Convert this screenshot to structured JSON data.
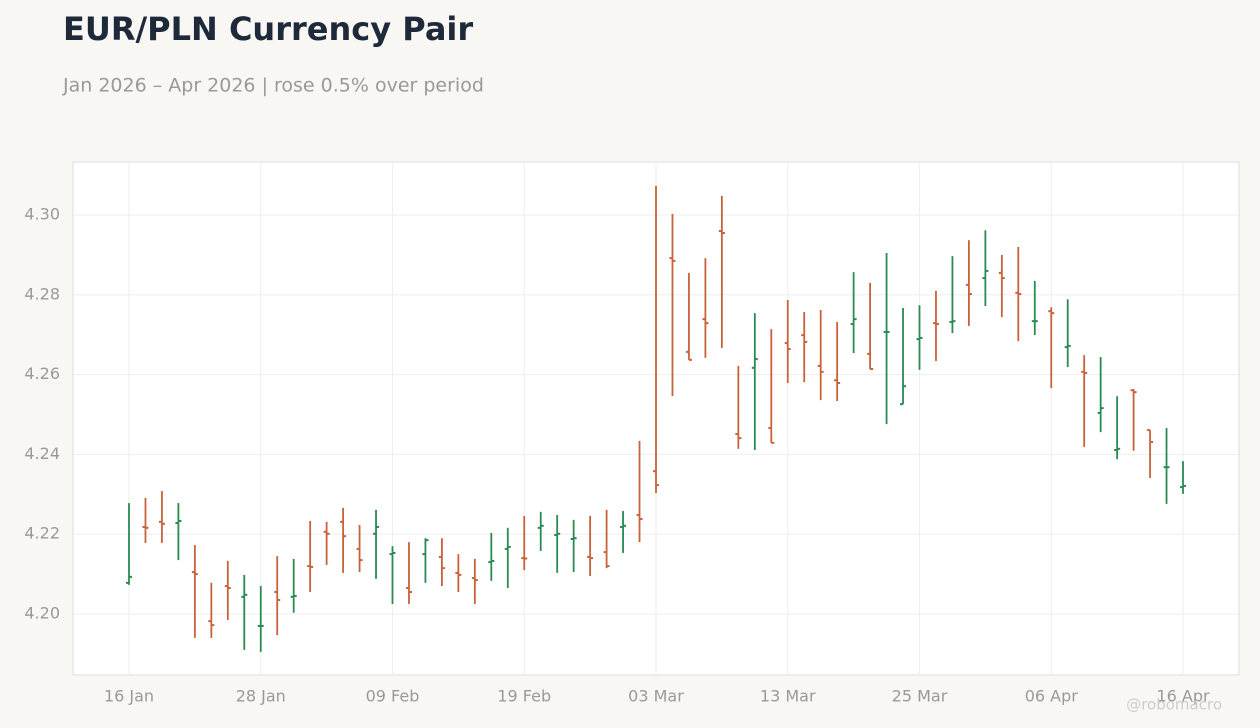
{
  "chart_data": {
    "type": "ohlc",
    "title": "EUR/PLN Currency Pair",
    "subtitle": "Jan 2026 – Apr 2026 | rose 0.5% over period",
    "watermark": "@robomacro",
    "up_color": "#2a8a50",
    "down_color": "#c8623a",
    "grid": true,
    "ylim": [
      4.1847,
      4.3133
    ],
    "yticks": [
      {
        "value": 4.2,
        "label": "4.20"
      },
      4.22,
      4.24,
      4.26,
      4.28,
      {
        "value": 4.3,
        "label": "4.30"
      }
    ],
    "categories": [
      "16 Jan",
      null,
      null,
      null,
      null,
      null,
      null,
      null,
      "28 Jan",
      null,
      null,
      null,
      null,
      null,
      null,
      null,
      "09 Feb",
      null,
      null,
      null,
      null,
      null,
      null,
      null,
      "19 Feb",
      null,
      null,
      null,
      null,
      null,
      null,
      null,
      "03 Mar",
      null,
      null,
      null,
      null,
      null,
      null,
      null,
      "13 Mar",
      null,
      null,
      null,
      null,
      null,
      null,
      null,
      "25 Mar",
      null,
      null,
      null,
      null,
      null,
      null,
      null,
      "06 Apr",
      null,
      null,
      null,
      null,
      null,
      null,
      null,
      "16 Apr"
    ],
    "open": [
      4.2078,
      4.2218,
      4.2231,
      4.2228,
      4.2105,
      4.1982,
      4.207,
      4.2043,
      4.197,
      4.2055,
      4.2043,
      4.212,
      4.2206,
      4.2231,
      4.2163,
      4.2201,
      4.215,
      4.2065,
      4.215,
      4.2143,
      4.2103,
      4.209,
      4.213,
      4.2163,
      4.214,
      4.2216,
      4.2198,
      4.2188,
      4.2143,
      4.2155,
      4.2218,
      4.2248,
      4.2358,
      4.2892,
      4.2657,
      4.2739,
      4.296,
      4.2451,
      4.2617,
      4.2466,
      4.2679,
      4.2699,
      4.2622,
      4.2586,
      4.2727,
      4.2652,
      4.2707,
      4.2526,
      4.2689,
      4.2729,
      4.2732,
      4.2825,
      4.2842,
      4.2855,
      4.2805,
      4.2734,
      4.2759,
      4.2669,
      4.2607,
      4.2504,
      4.2411,
      4.2561,
      4.2461,
      4.2368,
      4.2318
    ],
    "high": [
      4.2278,
      4.2291,
      4.2308,
      4.2278,
      4.2173,
      4.2078,
      4.2133,
      4.2098,
      4.207,
      4.2145,
      4.2138,
      4.2233,
      4.2231,
      4.2266,
      4.2223,
      4.2261,
      4.217,
      4.218,
      4.219,
      4.219,
      4.215,
      4.2138,
      4.2203,
      4.2216,
      4.2246,
      4.2256,
      4.2248,
      4.2236,
      4.2246,
      4.2261,
      4.2258,
      4.2434,
      4.3073,
      4.3003,
      4.2855,
      4.2892,
      4.3048,
      4.2622,
      4.2754,
      4.2714,
      4.2787,
      4.2757,
      4.2762,
      4.2732,
      4.2857,
      4.283,
      4.2905,
      4.2767,
      4.2774,
      4.281,
      4.2897,
      4.2937,
      4.2962,
      4.29,
      4.292,
      4.2835,
      4.2769,
      4.2789,
      4.2649,
      4.2644,
      4.2546,
      4.2564,
      4.2461,
      4.2466,
      4.2383
    ],
    "low": [
      4.2073,
      4.2178,
      4.2178,
      4.2135,
      4.194,
      4.194,
      4.1985,
      4.191,
      4.1905,
      4.1947,
      4.2003,
      4.2055,
      4.2123,
      4.2103,
      4.2105,
      4.2088,
      4.2025,
      4.2025,
      4.2078,
      4.207,
      4.2055,
      4.2025,
      4.2083,
      4.2065,
      4.211,
      4.2158,
      4.2103,
      4.2105,
      4.2095,
      4.2115,
      4.2153,
      4.218,
      4.2303,
      4.2546,
      4.2637,
      4.2642,
      4.2667,
      4.2414,
      4.2411,
      4.2429,
      4.2579,
      4.2581,
      4.2536,
      4.2534,
      4.2654,
      4.2614,
      4.2476,
      4.2526,
      4.2612,
      4.2634,
      4.2704,
      4.2722,
      4.2772,
      4.2744,
      4.2684,
      4.2699,
      4.2566,
      4.2619,
      4.2419,
      4.2456,
      4.2388,
      4.2409,
      4.2341,
      4.2276,
      4.2301
    ],
    "close": [
      4.2093,
      4.2216,
      4.2226,
      4.2233,
      4.21,
      4.1972,
      4.2065,
      4.2048,
      4.197,
      4.2035,
      4.2045,
      4.2118,
      4.2201,
      4.2195,
      4.2135,
      4.2218,
      4.2153,
      4.2055,
      4.2185,
      4.2115,
      4.2098,
      4.2085,
      4.2133,
      4.2168,
      4.2139,
      4.2221,
      4.2201,
      4.219,
      4.214,
      4.212,
      4.2221,
      4.2238,
      4.2323,
      4.2885,
      4.2637,
      4.2729,
      4.2955,
      4.2441,
      4.2639,
      4.2429,
      4.2664,
      4.2682,
      4.2607,
      4.2579,
      4.2739,
      4.2614,
      4.2707,
      4.2571,
      4.2692,
      4.2727,
      4.2734,
      4.2802,
      4.286,
      4.2842,
      4.2802,
      4.2734,
      4.2754,
      4.2672,
      4.2604,
      4.2516,
      4.2414,
      4.2556,
      4.2431,
      4.2368,
      4.2321
    ]
  }
}
